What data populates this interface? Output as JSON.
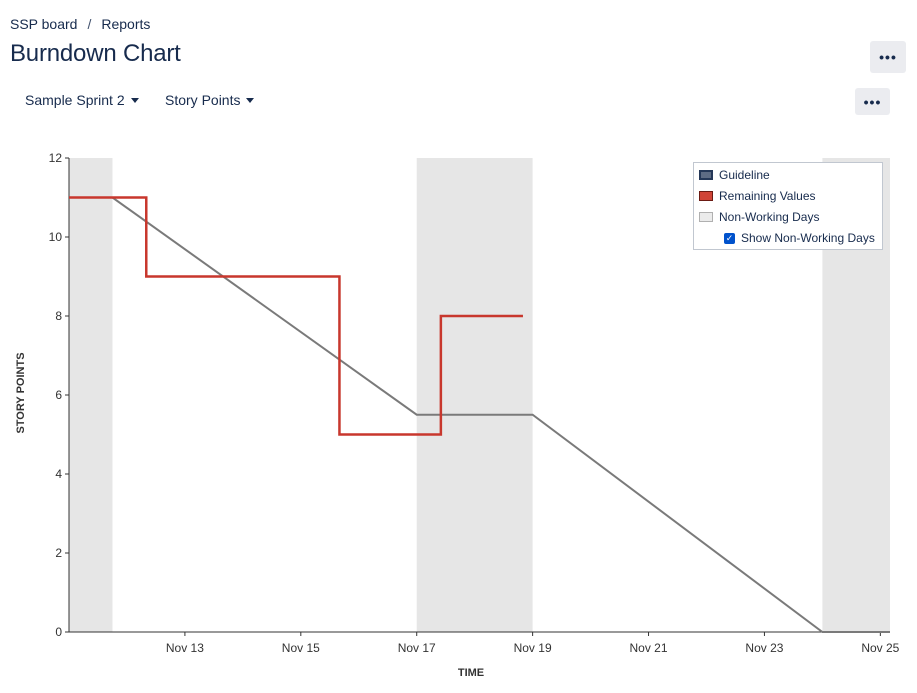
{
  "breadcrumb": {
    "board": "SSP board",
    "separator": "/",
    "current": "Reports"
  },
  "page_title": "Burndown Chart",
  "header_more_label": "•••",
  "chart_more_label": "•••",
  "controls": {
    "sprint_select": {
      "value": "Sample Sprint 2"
    },
    "statistic_select": {
      "value": "Story Points"
    }
  },
  "legend": {
    "guideline": "Guideline",
    "remaining": "Remaining Values",
    "non_working": "Non-Working Days",
    "show_non_working": {
      "label": "Show Non-Working Days",
      "checked": true,
      "check_glyph": "✓"
    }
  },
  "colors": {
    "guideline": "#7a7a7a",
    "remaining": "#c8372d",
    "non_working": "#e6e6e6",
    "axis": "#333333",
    "checkbox": "#0052cc"
  },
  "chart_data": {
    "type": "line",
    "xlabel": "TIME",
    "ylabel": "STORY POINTS",
    "ylim": [
      0,
      12
    ],
    "xlim": [
      "2018-11-11 00:00",
      "2018-11-25 04:00"
    ],
    "x_ticks": [
      "Nov 13",
      "Nov 15",
      "Nov 17",
      "Nov 19",
      "Nov 21",
      "Nov 23",
      "Nov 25"
    ],
    "y_ticks": [
      0,
      2,
      4,
      6,
      8,
      10,
      12
    ],
    "non_working_periods": [
      [
        "2018-11-11 00:00",
        "2018-11-11 18:00"
      ],
      [
        "2018-11-17 00:00",
        "2018-11-19 00:00"
      ],
      [
        "2018-11-24 00:00",
        "2018-11-25 04:00"
      ]
    ],
    "series": [
      {
        "name": "Guideline",
        "points": [
          {
            "x": "2018-11-11 00:00",
            "y": 11
          },
          {
            "x": "2018-11-11 18:00",
            "y": 11
          },
          {
            "x": "2018-11-17 00:00",
            "y": 5.5
          },
          {
            "x": "2018-11-19 00:00",
            "y": 5.5
          },
          {
            "x": "2018-11-24 00:00",
            "y": 0
          },
          {
            "x": "2018-11-25 04:00",
            "y": 0
          }
        ]
      },
      {
        "name": "Remaining Values",
        "step": true,
        "points": [
          {
            "x": "2018-11-11 00:00",
            "y": 11
          },
          {
            "x": "2018-11-12 08:00",
            "y": 9
          },
          {
            "x": "2018-11-15 16:00",
            "y": 5
          },
          {
            "x": "2018-11-17 10:00",
            "y": 8
          },
          {
            "x": "2018-11-18 20:00",
            "y": 8
          }
        ]
      }
    ]
  }
}
